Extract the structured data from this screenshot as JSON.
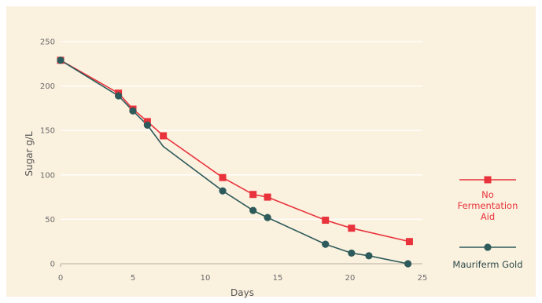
{
  "chart_data": {
    "type": "line",
    "title": "",
    "xlabel": "Days",
    "ylabel": "Sugar g/L",
    "xlim": [
      0,
      25
    ],
    "ylim": [
      0,
      250
    ],
    "x_ticks": [
      "0",
      "5",
      "10",
      "15",
      "20",
      "25"
    ],
    "y_ticks": [
      "0",
      "50",
      "100",
      "150",
      "200",
      "250"
    ],
    "grid": "horizontal",
    "legend_position": "right",
    "series": [
      {
        "name": "No Fermentation Aid",
        "color": "#e8333c",
        "marker": "square",
        "points": [
          {
            "x": 0,
            "y": 229
          },
          {
            "x": 4,
            "y": 192
          },
          {
            "x": 5,
            "y": 174
          },
          {
            "x": 6,
            "y": 160
          },
          {
            "x": 7.1,
            "y": 144
          },
          {
            "x": 11.2,
            "y": 97
          },
          {
            "x": 13.3,
            "y": 78
          },
          {
            "x": 14.3,
            "y": 75
          },
          {
            "x": 18.3,
            "y": 49
          },
          {
            "x": 20.1,
            "y": 40
          },
          {
            "x": 24.1,
            "y": 25
          }
        ]
      },
      {
        "name": "Mauriferm Gold",
        "color": "#2d5a5a",
        "marker": "circle",
        "points": [
          {
            "x": 0,
            "y": 229
          },
          {
            "x": 4,
            "y": 189
          },
          {
            "x": 5,
            "y": 172
          },
          {
            "x": 6,
            "y": 156
          },
          {
            "x": 7.1,
            "y": 132,
            "marker": false
          },
          {
            "x": 11.2,
            "y": 82
          },
          {
            "x": 13.3,
            "y": 60
          },
          {
            "x": 14.3,
            "y": 52
          },
          {
            "x": 18.3,
            "y": 22
          },
          {
            "x": 20.1,
            "y": 12
          },
          {
            "x": 21.3,
            "y": 9
          },
          {
            "x": 24,
            "y": 0
          }
        ]
      }
    ]
  },
  "legend": {
    "items": [
      {
        "label_lines": [
          "No",
          "Fermentation",
          "Aid"
        ]
      },
      {
        "label_lines": [
          "Mauriferm Gold"
        ]
      }
    ]
  }
}
